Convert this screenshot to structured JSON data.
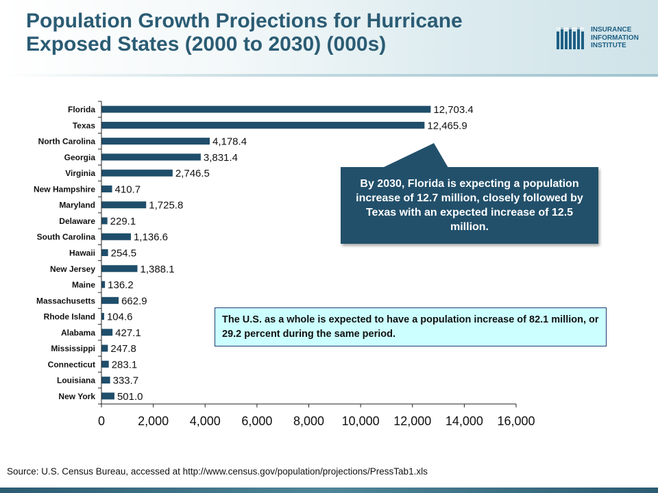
{
  "title": "Population Growth Projections for Hurricane Exposed States (2000 to 2030) (000s)",
  "logo": {
    "lines": [
      "INSURANCE",
      "INFORMATION",
      "INSTITUTE"
    ]
  },
  "callout_text": "By 2030, Florida is expecting a population increase of 12.7 million, closely followed by Texas with an expected increase of 12.5 million.",
  "note_text": "The U.S. as a whole is expected to have a population increase of 82.1 million, or 29.2 percent during the same period.",
  "source": "Source: U.S. Census Bureau, accessed at http://www.census.gov/population/projections/PressTab1.xls",
  "colors": {
    "bar": "#1f4e6b",
    "title": "#2b5c74",
    "callout": "#22506b",
    "note_bg": "#ccffff"
  },
  "chart_data": {
    "type": "bar",
    "orientation": "horizontal",
    "categories": [
      "Florida",
      "Texas",
      "North Carolina",
      "Georgia",
      "Virginia",
      "New Hampshire",
      "Maryland",
      "Delaware",
      "South Carolina",
      "Hawaii",
      "New Jersey",
      "Maine",
      "Massachusetts",
      "Rhode Island",
      "Alabama",
      "Mississippi",
      "Connecticut",
      "Louisiana",
      "New York"
    ],
    "values": [
      12703.4,
      12465.9,
      4178.4,
      3831.4,
      2746.5,
      410.7,
      1725.8,
      229.1,
      1136.6,
      254.5,
      1388.1,
      136.2,
      662.9,
      104.6,
      427.1,
      247.8,
      283.1,
      333.7,
      501.0
    ],
    "value_labels": [
      "12,703.4",
      "12,465.9",
      "4,178.4",
      "3,831.4",
      "2,746.5",
      "410.7",
      "1,725.8",
      "229.1",
      "1,136.6",
      "254.5",
      "1,388.1",
      "136.2",
      "662.9",
      "104.6",
      "427.1",
      "247.8",
      "283.1",
      "333.7",
      "501.0"
    ],
    "xlim": [
      0,
      16000
    ],
    "xticks": [
      0,
      2000,
      4000,
      6000,
      8000,
      10000,
      12000,
      14000,
      16000
    ],
    "xtick_labels": [
      "0",
      "2,000",
      "4,000",
      "6,000",
      "8,000",
      "10,000",
      "12,000",
      "14,000",
      "16,000"
    ],
    "grid": false,
    "legend": "none"
  }
}
